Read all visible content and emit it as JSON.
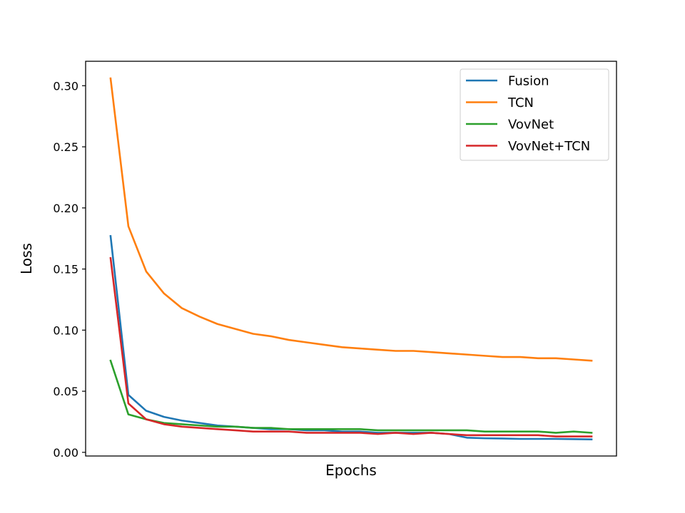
{
  "chart_data": {
    "type": "line",
    "xlabel": "Epochs",
    "ylabel": "Loss",
    "ylim": [
      -0.003,
      0.32
    ],
    "xlim": [
      -1.4,
      28.4
    ],
    "x": [
      0,
      1,
      2,
      3,
      4,
      5,
      6,
      7,
      8,
      9,
      10,
      11,
      12,
      13,
      14,
      15,
      16,
      17,
      18,
      19,
      20,
      21,
      22,
      23,
      24,
      25,
      26,
      27
    ],
    "yticks": [
      0.0,
      0.05,
      0.1,
      0.15,
      0.2,
      0.25,
      0.3
    ],
    "ytick_labels": [
      "0.00",
      "0.05",
      "0.10",
      "0.15",
      "0.20",
      "0.25",
      "0.30"
    ],
    "legend_position": "top-right",
    "grid": false,
    "series": [
      {
        "name": "Fusion",
        "color": "#1f77b4",
        "values": [
          0.177,
          0.047,
          0.034,
          0.029,
          0.026,
          0.024,
          0.022,
          0.021,
          0.02,
          0.019,
          0.019,
          0.018,
          0.018,
          0.017,
          0.017,
          0.016,
          0.016,
          0.016,
          0.016,
          0.015,
          0.012,
          0.0115,
          0.0113,
          0.011,
          0.011,
          0.011,
          0.0108,
          0.0106
        ]
      },
      {
        "name": "TCN",
        "color": "#ff7f0e",
        "values": [
          0.306,
          0.185,
          0.148,
          0.13,
          0.118,
          0.111,
          0.105,
          0.101,
          0.097,
          0.095,
          0.092,
          0.09,
          0.088,
          0.086,
          0.085,
          0.084,
          0.083,
          0.083,
          0.082,
          0.081,
          0.08,
          0.079,
          0.078,
          0.078,
          0.077,
          0.077,
          0.076,
          0.075
        ]
      },
      {
        "name": "VovNet",
        "color": "#2ca02c",
        "values": [
          0.075,
          0.031,
          0.027,
          0.024,
          0.023,
          0.022,
          0.021,
          0.021,
          0.02,
          0.02,
          0.019,
          0.019,
          0.019,
          0.019,
          0.019,
          0.018,
          0.018,
          0.018,
          0.018,
          0.018,
          0.018,
          0.017,
          0.017,
          0.017,
          0.017,
          0.016,
          0.017,
          0.016
        ]
      },
      {
        "name": "VovNet+TCN",
        "color": "#d62728",
        "values": [
          0.159,
          0.04,
          0.027,
          0.023,
          0.021,
          0.02,
          0.019,
          0.018,
          0.017,
          0.017,
          0.017,
          0.016,
          0.016,
          0.016,
          0.016,
          0.015,
          0.016,
          0.015,
          0.016,
          0.015,
          0.014,
          0.014,
          0.014,
          0.014,
          0.014,
          0.013,
          0.013,
          0.013
        ]
      }
    ]
  }
}
